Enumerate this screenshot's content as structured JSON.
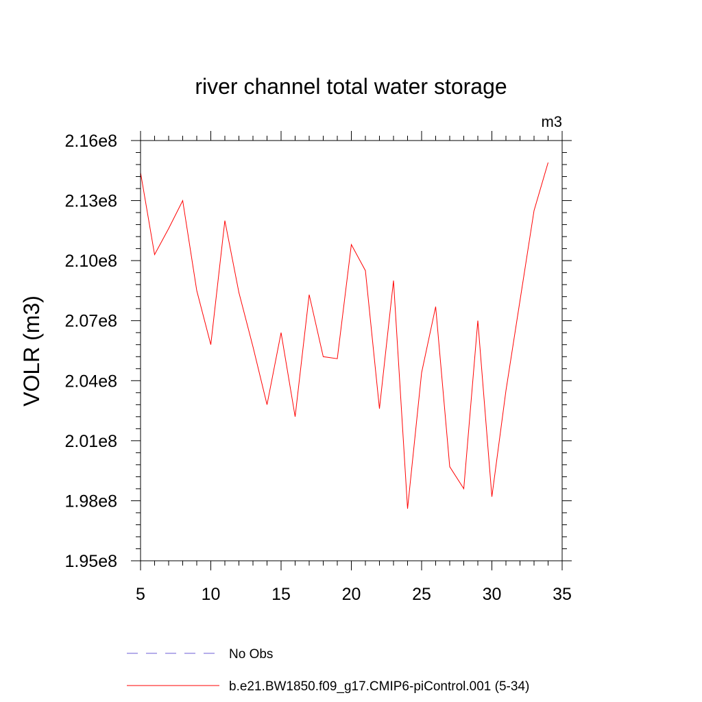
{
  "chart_data": {
    "type": "line",
    "title": "river channel total water storage",
    "units_label": "m3",
    "ylabel": "VOLR  (m3)",
    "xlabel": "",
    "xlim": [
      5,
      35
    ],
    "ylim": [
      195000000,
      216000000
    ],
    "xticks": [
      5,
      10,
      15,
      20,
      25,
      30,
      35
    ],
    "xtick_labels": [
      "5",
      "10",
      "15",
      "20",
      "25",
      "30",
      "35"
    ],
    "yticks": [
      195000000,
      198000000,
      201000000,
      204000000,
      207000000,
      210000000,
      213000000,
      216000000
    ],
    "ytick_labels": [
      "1.95e8",
      "1.98e8",
      "2.01e8",
      "2.04e8",
      "2.07e8",
      "2.10e8",
      "2.13e8",
      "2.16e8"
    ],
    "grid": false,
    "legend_position": "bottom",
    "series": [
      {
        "name": "No Obs",
        "color": "#6b5bd6",
        "dash": "dashed",
        "x": [],
        "y": []
      },
      {
        "name": "b.e21.BW1850.f09_g17.CMIP6-piControl.001 (5-34)",
        "color": "#ff0000",
        "dash": "solid",
        "x": [
          5,
          6,
          7,
          8,
          9,
          10,
          11,
          12,
          13,
          14,
          15,
          16,
          17,
          18,
          19,
          20,
          21,
          22,
          23,
          24,
          25,
          26,
          27,
          28,
          29,
          30,
          31,
          32,
          33,
          34
        ],
        "y": [
          214400000,
          210300000,
          211600000,
          213000000,
          208500000,
          205800000,
          212000000,
          208400000,
          205700000,
          202800000,
          206400000,
          202200000,
          208300000,
          205200000,
          205100000,
          210800000,
          209500000,
          202600000,
          209000000,
          197600000,
          204400000,
          207700000,
          199700000,
          198600000,
          207000000,
          198200000,
          203500000,
          208000000,
          212500000,
          214900000
        ]
      }
    ]
  }
}
